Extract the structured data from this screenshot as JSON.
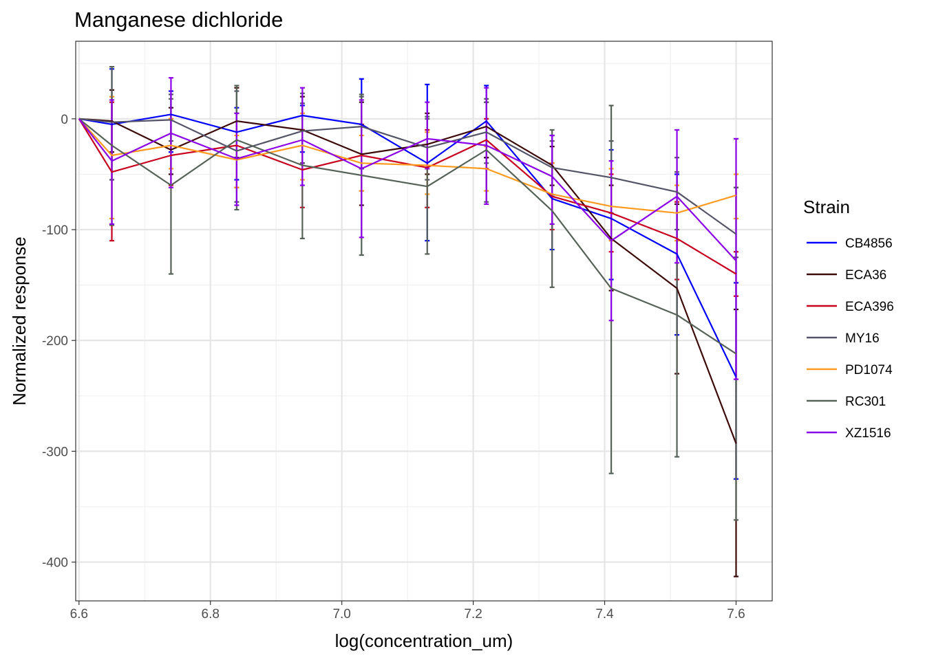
{
  "chart_data": {
    "type": "line",
    "title": "Manganese dichloride",
    "xlabel": "log(concentration_um)",
    "ylabel": "Normalized response",
    "xlim": [
      6.595,
      7.655
    ],
    "ylim": [
      -435,
      70
    ],
    "x_ticks": [
      6.6,
      6.8,
      7.0,
      7.2,
      7.4,
      7.6
    ],
    "x_tick_labels": [
      "6.6",
      "6.8",
      "7.0",
      "7.2",
      "7.4",
      "7.6"
    ],
    "y_ticks": [
      0,
      -100,
      -200,
      -300,
      -400
    ],
    "y_tick_labels": [
      "0",
      "-100",
      "-200",
      "-300",
      "-400"
    ],
    "grid": true,
    "legend_title": "Strain",
    "legend_position": "right",
    "x": [
      6.6,
      6.65,
      6.74,
      6.84,
      6.94,
      7.03,
      7.13,
      7.22,
      7.32,
      7.41,
      7.51,
      7.6
    ],
    "series": [
      {
        "name": "CB4856",
        "color": "#0000ff",
        "values": [
          0,
          -5,
          4,
          -12,
          3,
          -5,
          -40,
          -2,
          -72,
          -90,
          -122,
          -233
        ],
        "err_low": [
          0,
          -55,
          -30,
          -55,
          -30,
          -45,
          -110,
          -35,
          -118,
          -145,
          -195,
          -325
        ],
        "err_high": [
          0,
          45,
          25,
          10,
          12,
          36,
          31,
          30,
          -15,
          -28,
          -50,
          -148
        ]
      },
      {
        "name": "ECA36",
        "color": "#3d0a0a",
        "values": [
          0,
          -2,
          -28,
          -2,
          -10,
          -32,
          -23,
          -7,
          -42,
          -108,
          -153,
          -293
        ],
        "err_low": [
          0,
          -30,
          -50,
          -35,
          -40,
          -78,
          -50,
          -35,
          -60,
          -155,
          -230,
          -413
        ],
        "err_high": [
          0,
          26,
          10,
          28,
          20,
          15,
          5,
          15,
          -25,
          -60,
          -77,
          -172
        ]
      },
      {
        "name": "ECA396",
        "color": "#c8001e",
        "values": [
          0,
          -48,
          -33,
          -24,
          -46,
          -33,
          -44,
          -19,
          -70,
          -85,
          -108,
          -140
        ],
        "err_low": [
          0,
          -110,
          -60,
          -62,
          -80,
          -65,
          -80,
          -45,
          -100,
          -120,
          -145,
          -160
        ],
        "err_high": [
          0,
          15,
          0,
          5,
          -10,
          -5,
          -10,
          0,
          -40,
          -50,
          -75,
          -120
        ]
      },
      {
        "name": "MY16",
        "color": "#545468",
        "values": [
          0,
          -3,
          -1,
          -29,
          -11,
          -7,
          -26,
          -12,
          -44,
          -53,
          -66,
          -104
        ],
        "err_low": [
          0,
          -55,
          -20,
          -75,
          -40,
          -45,
          -55,
          -40,
          -70,
          -85,
          -100,
          -125
        ],
        "err_high": [
          0,
          20,
          22,
          25,
          14,
          20,
          0,
          15,
          -20,
          -20,
          -35,
          -62
        ]
      },
      {
        "name": "PD1074",
        "color": "#ff9a1e",
        "values": [
          0,
          -33,
          -24,
          -37,
          -24,
          -40,
          -42,
          -45,
          -68,
          -79,
          -85,
          -69
        ],
        "err_low": [
          0,
          -90,
          -45,
          -62,
          -55,
          -65,
          -68,
          -65,
          -95,
          -110,
          -110,
          -90
        ],
        "err_high": [
          0,
          20,
          0,
          -15,
          5,
          -15,
          -12,
          -25,
          -40,
          -45,
          -60,
          -50
        ]
      },
      {
        "name": "RC301",
        "color": "#566157",
        "values": [
          0,
          -24,
          -60,
          -19,
          -42,
          -51,
          -61,
          -28,
          -83,
          -153,
          -177,
          -212
        ],
        "err_low": [
          0,
          -96,
          -140,
          -82,
          -108,
          -123,
          -122,
          -75,
          -152,
          -320,
          -305,
          -362
        ],
        "err_high": [
          0,
          47,
          18,
          30,
          23,
          22,
          2,
          18,
          -10,
          12,
          -48,
          -62
        ]
      },
      {
        "name": "XZ1516",
        "color": "#8b00e8",
        "values": [
          0,
          -38,
          -13,
          -36,
          -19,
          -45,
          -18,
          -24,
          -52,
          -110,
          -70,
          -128
        ],
        "err_low": [
          0,
          -95,
          -62,
          -78,
          -60,
          -107,
          -45,
          -77,
          -95,
          -182,
          -130,
          -235
        ],
        "err_high": [
          0,
          17,
          37,
          5,
          28,
          17,
          15,
          28,
          -15,
          -38,
          -10,
          -18
        ]
      }
    ]
  }
}
